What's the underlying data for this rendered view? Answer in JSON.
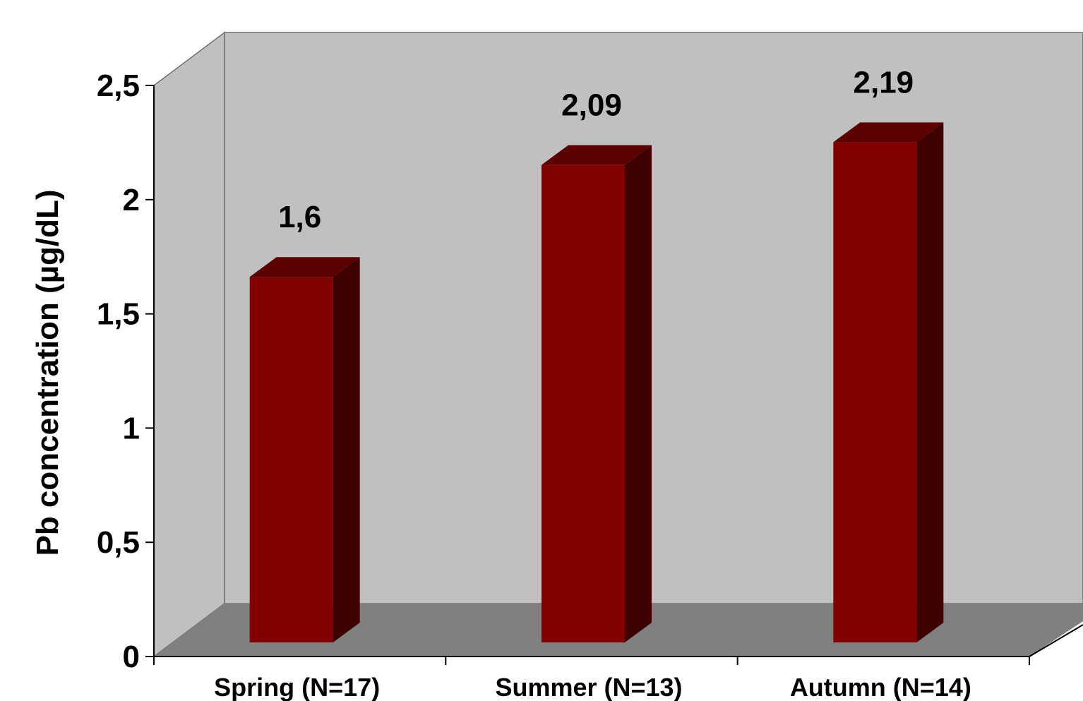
{
  "chart_data": {
    "type": "bar",
    "title": "",
    "xlabel": "",
    "ylabel": "Pb concentration (µg/dL)",
    "categories": [
      "Spring (N=17)",
      "Summer (N=13)",
      "Autumn (N=14)"
    ],
    "values": [
      1.6,
      2.09,
      2.19
    ],
    "value_labels": [
      "1,6",
      "2,09",
      "2,19"
    ],
    "ylim": [
      0,
      2.5
    ],
    "yticks": [
      0,
      0.5,
      1,
      1.5,
      2,
      2.5
    ],
    "ytick_labels": [
      "0",
      "0,5",
      "1",
      "1,5",
      "2",
      "2,5"
    ],
    "grid": false,
    "legend": "none",
    "style": "3d",
    "colors": {
      "bar_front": "#800000",
      "bar_side": "#3f0000",
      "bar_top": "#5c0000",
      "back_wall": "#c0c0c0",
      "side_wall": "#c0c0c0",
      "floor": "#808080",
      "axis": "#000000"
    }
  }
}
